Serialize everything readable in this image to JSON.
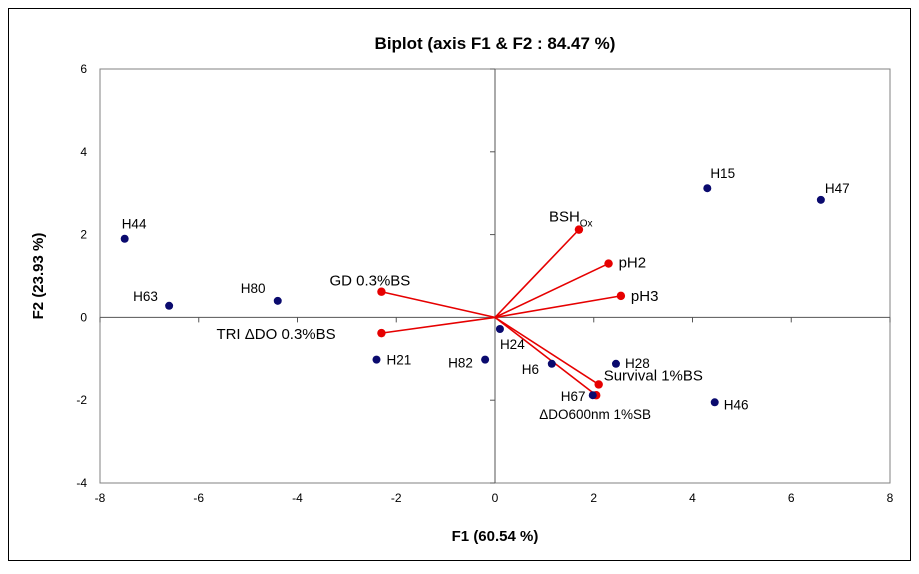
{
  "chart_data": {
    "type": "scatter",
    "subtype": "biplot",
    "title": "Biplot (axis F1 & F2 : 84.47 %)",
    "xlabel": "F1 (60.54 %)",
    "ylabel": "F2 (23.93 %)",
    "xlim": [
      -8,
      8
    ],
    "ylim": [
      -4,
      6
    ],
    "xticks": [
      -8,
      -6,
      -4,
      -2,
      0,
      2,
      4,
      6,
      8
    ],
    "yticks": [
      -4,
      -2,
      0,
      2,
      4,
      6
    ],
    "grid": false,
    "observations": [
      {
        "label": "H44",
        "x": -7.5,
        "y": 1.9
      },
      {
        "label": "H63",
        "x": -6.6,
        "y": 0.28
      },
      {
        "label": "H80",
        "x": -4.4,
        "y": 0.4
      },
      {
        "label": "H21",
        "x": -2.4,
        "y": -1.02
      },
      {
        "label": "H82",
        "x": -0.2,
        "y": -1.02
      },
      {
        "label": "H24",
        "x": 0.1,
        "y": -0.28
      },
      {
        "label": "H6",
        "x": 1.15,
        "y": -1.12
      },
      {
        "label": "H67",
        "x": 1.98,
        "y": -1.88
      },
      {
        "label": "H28",
        "x": 2.45,
        "y": -1.12
      },
      {
        "label": "H46",
        "x": 4.45,
        "y": -2.05
      },
      {
        "label": "H15",
        "x": 4.3,
        "y": 3.12
      },
      {
        "label": "H47",
        "x": 6.6,
        "y": 2.84
      }
    ],
    "variables": [
      {
        "label": "BSH",
        "sub": "Ox",
        "x": 1.7,
        "y": 2.12
      },
      {
        "label": "pH2",
        "x": 2.3,
        "y": 1.3
      },
      {
        "label": "pH3",
        "x": 2.55,
        "y": 0.52
      },
      {
        "label": "GD 0.3%BS",
        "x": -2.3,
        "y": 0.62
      },
      {
        "label": "TRI ΔDO 0.3%BS",
        "x": -2.3,
        "y": -0.38
      },
      {
        "label": "Survival 1%BS",
        "x": 2.1,
        "y": -1.62
      },
      {
        "label": "ΔDO600nm 1%SB",
        "x": 2.05,
        "y": -1.88
      }
    ],
    "colors": {
      "observation": "#0a0a6e",
      "variable": "#e60000"
    }
  }
}
